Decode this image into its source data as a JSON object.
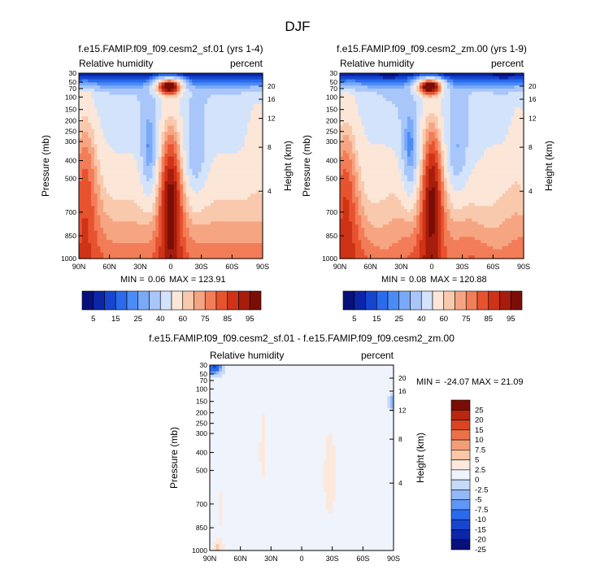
{
  "figure": {
    "title": "DJF"
  },
  "palettes": {
    "rh": [
      "#08107a",
      "#0b26a8",
      "#1646cf",
      "#2a6aed",
      "#4b8bf5",
      "#7aaaf7",
      "#a9c6fa",
      "#d3e3fb",
      "#fbe6d8",
      "#f9c9ad",
      "#f6a582",
      "#f27d58",
      "#e7532f",
      "#cf3317",
      "#a61d0d",
      "#7a0e06"
    ],
    "diff": [
      "#08107a",
      "#0b26a8",
      "#1646cf",
      "#2a6aed",
      "#5f97f6",
      "#93b8f8",
      "#c5d9fa",
      "#eef3fc",
      "#fde8dc",
      "#fac6a7",
      "#f49e78",
      "#ec7149",
      "#db4421",
      "#b8270f",
      "#7a0e06"
    ]
  },
  "chart_data": [
    {
      "type": "heatmap",
      "title": "f.e15.FAMIP.f09_f09.cesm2_sf.01 (yrs 1-4)",
      "left_label": "Relative humidity",
      "right_label": "percent",
      "ylabel": "Pressure (mb)",
      "ylabel_right": "Height (km)",
      "x_ticks": [
        "90N",
        "60N",
        "30N",
        "0",
        "30S",
        "60S",
        "90S"
      ],
      "p_ticks": [
        "30",
        "50",
        "70",
        "100",
        "150",
        "200",
        "250",
        "300",
        "400",
        "500",
        "700",
        "850",
        "1000"
      ],
      "h_ticks": [
        "20",
        "16",
        "12",
        "8",
        "4"
      ],
      "min_label": "MIN =",
      "min_value": "0.06",
      "max_label": "MAX =",
      "max_value": "123.91",
      "colorbar_labels": [
        "5",
        "15",
        "25",
        "40",
        "60",
        "75",
        "85",
        "95"
      ]
    },
    {
      "type": "heatmap",
      "title": "f.e15.FAMIP.f09_f09.cesm2_zm.00 (yrs 1-9)",
      "left_label": "Relative humidity",
      "right_label": "percent",
      "ylabel": "Pressure (mb)",
      "ylabel_right": "Height (km)",
      "x_ticks": [
        "90N",
        "60N",
        "30N",
        "0",
        "30S",
        "60S",
        "90S"
      ],
      "p_ticks": [
        "30",
        "50",
        "70",
        "100",
        "150",
        "200",
        "250",
        "300",
        "400",
        "500",
        "700",
        "850",
        "1000"
      ],
      "h_ticks": [
        "20",
        "16",
        "12",
        "8",
        "4"
      ],
      "min_label": "MIN =",
      "min_value": "0.08",
      "max_label": "MAX =",
      "max_value": "120.88",
      "colorbar_labels": [
        "5",
        "15",
        "25",
        "40",
        "60",
        "75",
        "85",
        "95"
      ]
    },
    {
      "type": "heatmap",
      "title": "f.e15.FAMIP.f09_f09.cesm2_sf.01 - f.e15.FAMIP.f09_f09.cesm2_zm.00",
      "left_label": "Relative humidity",
      "right_label": "percent",
      "ylabel": "Pressure (mb)",
      "ylabel_right": "Height (km)",
      "x_ticks": [
        "90N",
        "60N",
        "30N",
        "0",
        "30S",
        "60S",
        "90S"
      ],
      "p_ticks": [
        "30",
        "50",
        "70",
        "100",
        "150",
        "200",
        "250",
        "300",
        "400",
        "500",
        "700",
        "850",
        "1000"
      ],
      "h_ticks": [
        "20",
        "16",
        "12",
        "8",
        "4"
      ],
      "min_label": "MIN =",
      "min_value": "-24.07",
      "max_label": "MAX =",
      "max_value": "21.09",
      "colorbar_labels": [
        "25",
        "20",
        "15",
        "10",
        "7.5",
        "5",
        "2.5",
        "0",
        "-2.5",
        "-5",
        "-7.5",
        "-10",
        "-15",
        "-20",
        "-25"
      ]
    }
  ]
}
